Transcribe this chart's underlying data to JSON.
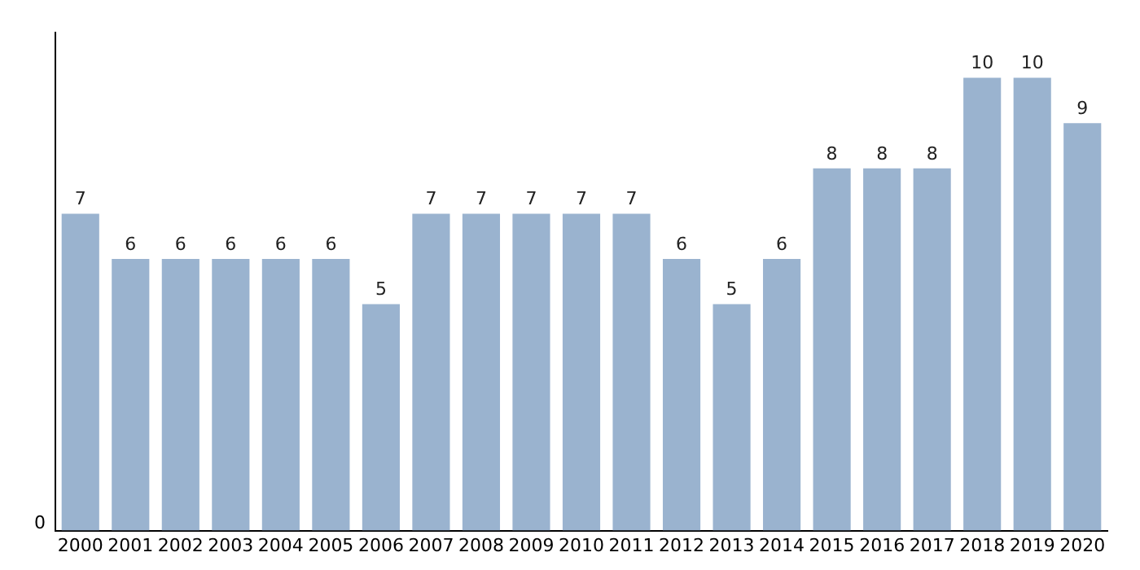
{
  "chart_data": {
    "type": "bar",
    "categories": [
      "2000",
      "2001",
      "2002",
      "2003",
      "2004",
      "2005",
      "2006",
      "2007",
      "2008",
      "2009",
      "2010",
      "2011",
      "2012",
      "2013",
      "2014",
      "2015",
      "2016",
      "2017",
      "2018",
      "2019",
      "2020"
    ],
    "values": [
      7,
      6,
      6,
      6,
      6,
      6,
      5,
      7,
      7,
      7,
      7,
      7,
      6,
      5,
      6,
      8,
      8,
      8,
      10,
      10,
      9
    ],
    "color": "#9ab3cf",
    "ylim": [
      0,
      11
    ],
    "annotations": [
      "0"
    ],
    "data_labels": true
  }
}
